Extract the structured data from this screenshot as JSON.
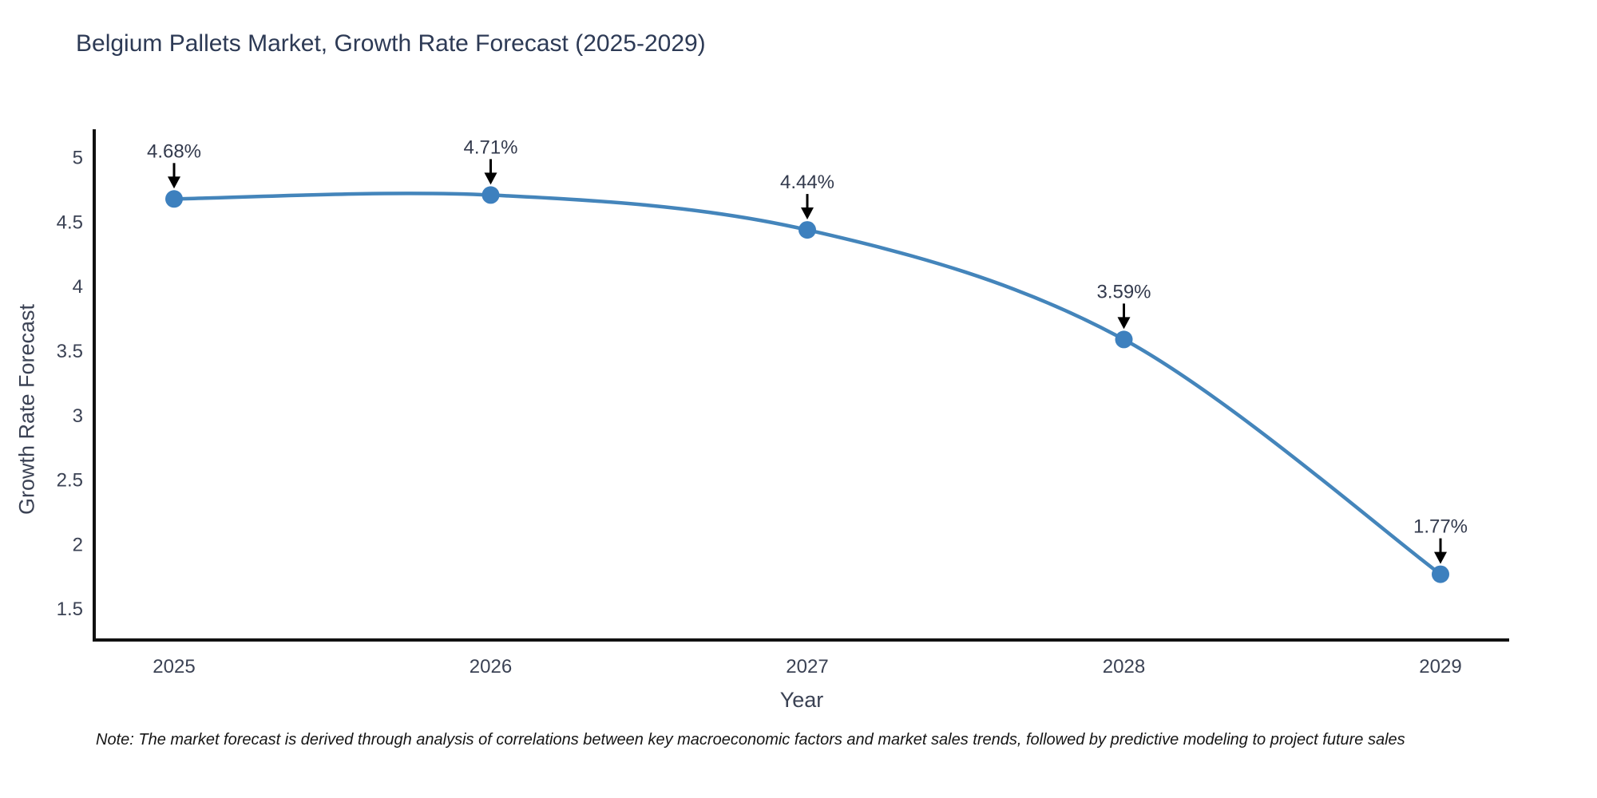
{
  "note": "Note: The market forecast is derived through analysis of correlations between key macroeconomic factors and market sales trends, followed by predictive modeling to project future sales",
  "chart_data": {
    "type": "line",
    "title": "Belgium Pallets Market, Growth Rate Forecast (2025-2029)",
    "xlabel": "Year",
    "ylabel": "Growth Rate Forecast",
    "categories": [
      "2025",
      "2026",
      "2027",
      "2028",
      "2029"
    ],
    "series": [
      {
        "name": "Growth Rate Forecast",
        "values": [
          4.68,
          4.71,
          4.44,
          3.59,
          1.77
        ]
      }
    ],
    "point_labels": [
      "4.68%",
      "4.71%",
      "4.44%",
      "3.59%",
      "1.77%"
    ],
    "yticks": [
      1.5,
      2,
      2.5,
      3,
      3.5,
      4,
      4.5,
      5
    ],
    "ylim": [
      1.26,
      5.22
    ],
    "grid": false,
    "legend": false,
    "smooth_line": true,
    "annotation_style": "black-down-arrow",
    "line_color": "#4485bb",
    "marker_color": "#3d80be",
    "axis_color": "#111111",
    "text_color": "#3b4254",
    "annotation_text_color": "#333a4d",
    "title_color": "#2d3a55",
    "background_color": "#ffffff"
  }
}
